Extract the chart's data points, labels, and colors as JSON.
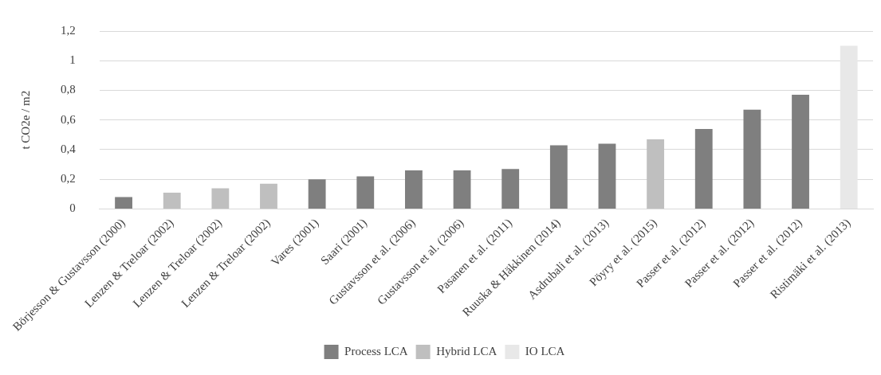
{
  "chart_data": {
    "type": "bar",
    "ylabel": "t CO2e / m2",
    "categories": [
      "Börjesson & Gustavsson (2000)",
      "Lenzen & Treloar (2002)",
      "Lenzen & Treloar (2002)",
      "Lenzen & Treloar (2002)",
      "Vares (2001)",
      "Saari (2001)",
      "Gustavsson et al. (2006)",
      "Gustavsson et al. (2006)",
      "Pasanen et al. (2011)",
      "Ruuska & Häkkinen (2014)",
      "Asdrubali et al. (2013)",
      "Pöyry et al. (2015)",
      "Passer et al. (2012)",
      "Passer et al. (2012)",
      "Passer et al. (2012)",
      "Ristimäki et al. (2013)"
    ],
    "series": [
      {
        "name": "Process LCA",
        "color": "#7f7f7f",
        "values": [
          0.08,
          null,
          null,
          null,
          0.2,
          0.22,
          0.26,
          0.26,
          0.27,
          0.43,
          0.44,
          null,
          0.54,
          0.67,
          0.77,
          null
        ]
      },
      {
        "name": "Hybrid LCA",
        "color": "#bfbfbf",
        "values": [
          null,
          0.11,
          0.14,
          0.17,
          null,
          null,
          null,
          null,
          null,
          null,
          null,
          0.47,
          null,
          null,
          null,
          null
        ]
      },
      {
        "name": "IO LCA",
        "color": "#e8e8e8",
        "values": [
          null,
          null,
          null,
          null,
          null,
          null,
          null,
          null,
          null,
          null,
          null,
          null,
          null,
          null,
          null,
          1.1
        ]
      }
    ],
    "ylim": [
      0,
      1.2
    ],
    "yticks": [
      {
        "value": 0,
        "label": "0"
      },
      {
        "value": 0.2,
        "label": "0,2"
      },
      {
        "value": 0.4,
        "label": "0,4"
      },
      {
        "value": 0.6,
        "label": "0,6"
      },
      {
        "value": 0.8,
        "label": "0,8"
      },
      {
        "value": 1,
        "label": "1"
      },
      {
        "value": 1.2,
        "label": "1,2"
      }
    ],
    "grid": "y",
    "legend": "bottom"
  }
}
